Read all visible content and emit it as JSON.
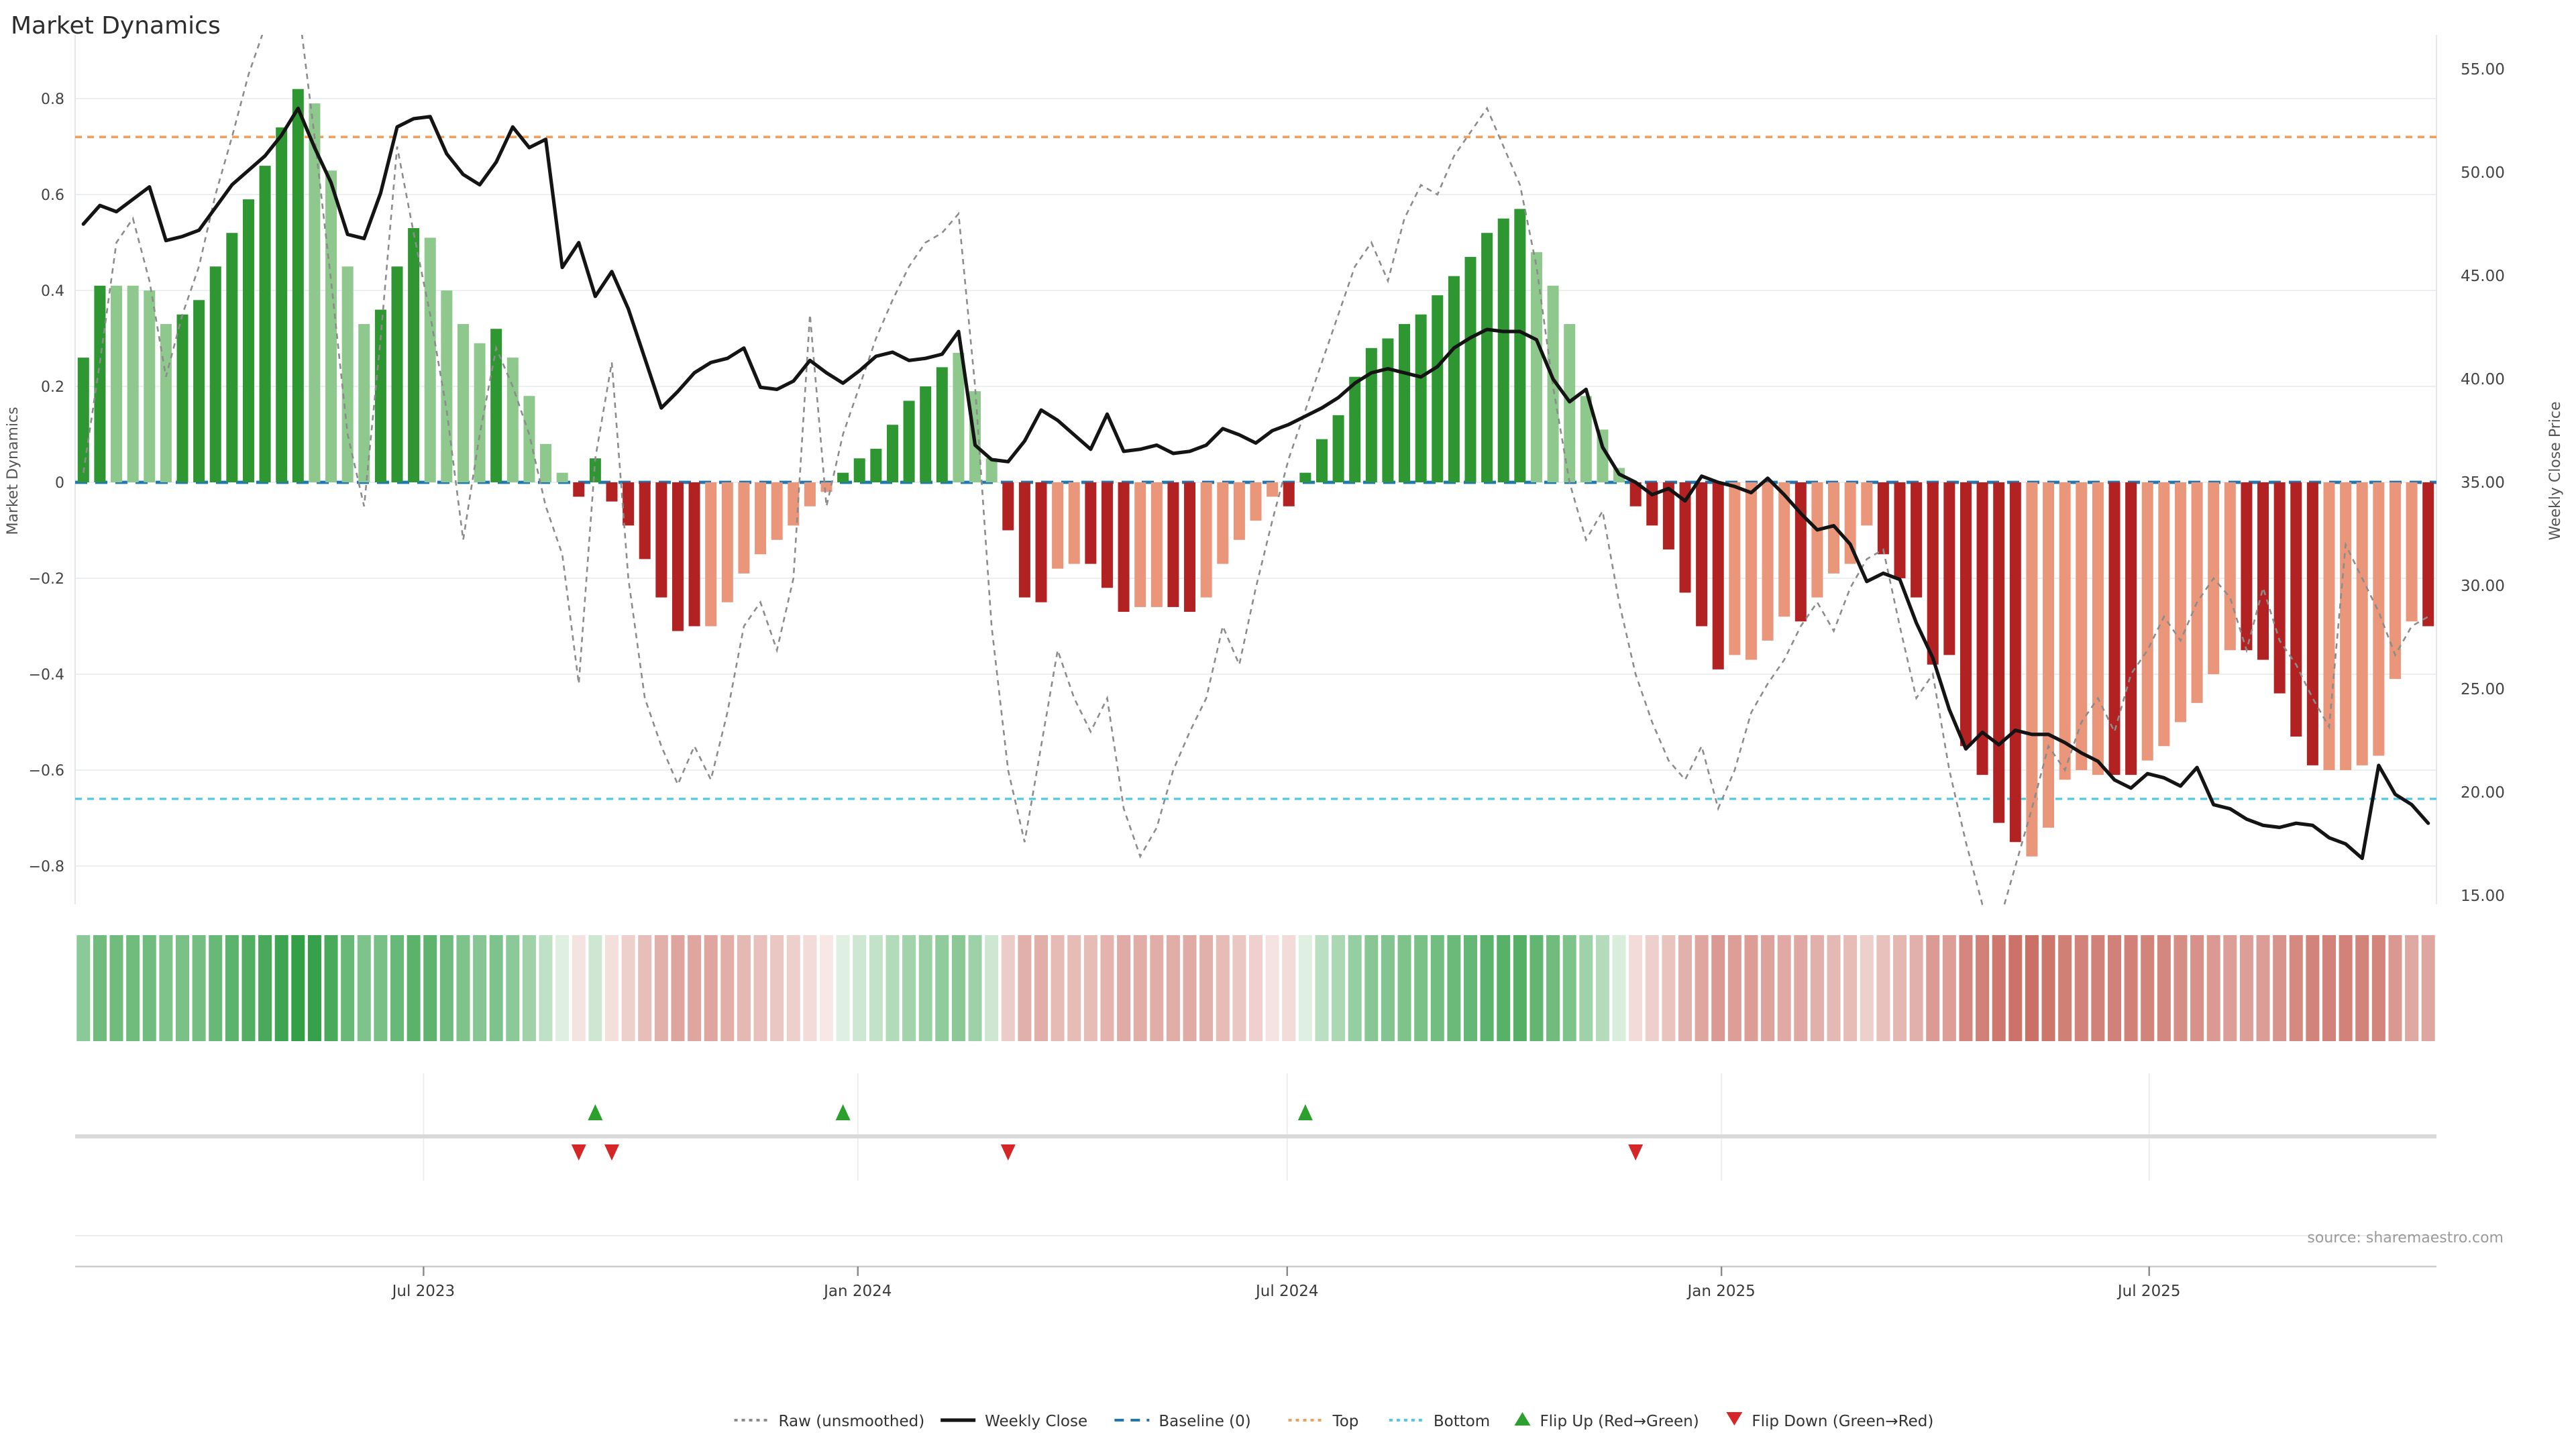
{
  "title": "Market Dynamics",
  "source_note": "source: sharemaestro.com",
  "axes": {
    "left": {
      "label": "Market Dynamics",
      "tick_values": [
        0.8,
        0.6,
        0.4,
        0.2,
        0,
        -0.2,
        -0.4,
        -0.6,
        -0.8
      ],
      "tick_labels": [
        "0.8",
        "0.6",
        "0.4",
        "0.2",
        "0",
        "−0.2",
        "−0.4",
        "−0.6",
        "−0.8"
      ],
      "range": [
        -0.875,
        0.875
      ]
    },
    "right": {
      "label": "Weekly Close Price",
      "tick_values": [
        55,
        50,
        45,
        40,
        35,
        30,
        25,
        20,
        15
      ],
      "tick_labels": [
        "55.00",
        "50.00",
        "45.00",
        "40.00",
        "35.00",
        "30.00",
        "25.00",
        "20.00",
        "15.00"
      ],
      "range": [
        13.2,
        56.8
      ]
    },
    "x": {
      "tick_labels": [
        "Jul 2023",
        "Jan 2024",
        "Jul 2024",
        "Jan 2025",
        "Jul 2025"
      ],
      "tick_weeks": [
        21.1,
        47.4,
        73.4,
        99.7,
        125.6
      ]
    }
  },
  "reference_lines": {
    "baseline": {
      "label": "Baseline (0)",
      "value": 0,
      "color": "#1f77b4",
      "style": "dashed"
    },
    "top": {
      "label": "Top",
      "value": 0.72,
      "color": "#f0a05c",
      "style": "dotted"
    },
    "bottom": {
      "label": "Bottom",
      "value": -0.66,
      "color": "#4fc8e8",
      "style": "dotted"
    }
  },
  "colors": {
    "bar_dark_green": "#2e9732",
    "bar_light_green": "#8ec88c",
    "bar_dark_red": "#b22222",
    "bar_light_red": "#e9967a",
    "weekly_close": "#141414",
    "raw_line": "#8c8c8c",
    "flip_up": "#2ca02c",
    "flip_down": "#d62728",
    "heat_green_base": "#2f9e44",
    "heat_red_base": "#c96a5f",
    "grid": "#eceff2",
    "axis_line": "#cccccc",
    "panel_divider": "#d9d9d9",
    "text_dark": "#333333",
    "text_gray": "#9a9a9a"
  },
  "legend": [
    {
      "label": "Raw (unsmoothed)",
      "swatch": "dotted-line",
      "color": "#8c8c8c"
    },
    {
      "label": "Weekly Close",
      "swatch": "solid-line",
      "color": "#141414"
    },
    {
      "label": "Baseline (0)",
      "swatch": "dashed-line",
      "color": "#1f77b4"
    },
    {
      "label": "Top",
      "swatch": "dotted-line",
      "color": "#f0a05c"
    },
    {
      "label": "Bottom",
      "swatch": "dotted-line",
      "color": "#4fc8e8"
    },
    {
      "label": "Flip Up (Red→Green)",
      "swatch": "triangle-up",
      "color": "#2ca02c"
    },
    {
      "label": "Flip Down (Green→Red)",
      "swatch": "triangle-down",
      "color": "#d62728"
    }
  ],
  "chart_data": {
    "type": "bar",
    "title": "Market Dynamics",
    "x_unit": "weeks (index 0..142)",
    "ylabel_left": "Market Dynamics",
    "ylabel_right": "Weekly Close Price",
    "ylim_left": [
      -0.875,
      0.875
    ],
    "ylim_right": [
      13.2,
      56.8
    ],
    "grid": true,
    "legend_position": "bottom-center",
    "dynamics": [
      0.26,
      0.41,
      0.41,
      0.41,
      0.4,
      0.33,
      0.35,
      0.38,
      0.45,
      0.52,
      0.59,
      0.66,
      0.74,
      0.82,
      0.79,
      0.65,
      0.45,
      0.33,
      0.36,
      0.45,
      0.53,
      0.51,
      0.4,
      0.33,
      0.29,
      0.32,
      0.26,
      0.18,
      0.08,
      0.02,
      -0.03,
      0.05,
      -0.04,
      -0.09,
      -0.16,
      -0.24,
      -0.31,
      -0.3,
      -0.3,
      -0.25,
      -0.19,
      -0.15,
      -0.12,
      -0.09,
      -0.05,
      -0.02,
      0.02,
      0.05,
      0.07,
      0.12,
      0.17,
      0.2,
      0.24,
      0.27,
      0.19,
      0.05,
      -0.1,
      -0.24,
      -0.25,
      -0.18,
      -0.17,
      -0.17,
      -0.22,
      -0.27,
      -0.26,
      -0.26,
      -0.26,
      -0.27,
      -0.24,
      -0.17,
      -0.12,
      -0.08,
      -0.03,
      -0.05,
      0.02,
      0.09,
      0.14,
      0.22,
      0.28,
      0.3,
      0.33,
      0.35,
      0.39,
      0.43,
      0.47,
      0.52,
      0.55,
      0.57,
      0.48,
      0.41,
      0.33,
      0.18,
      0.11,
      0.03,
      -0.05,
      -0.09,
      -0.14,
      -0.23,
      -0.3,
      -0.39,
      -0.36,
      -0.37,
      -0.33,
      -0.28,
      -0.29,
      -0.24,
      -0.19,
      -0.17,
      -0.09,
      -0.15,
      -0.2,
      -0.24,
      -0.38,
      -0.36,
      -0.55,
      -0.61,
      -0.71,
      -0.75,
      -0.78,
      -0.72,
      -0.62,
      -0.6,
      -0.61,
      -0.61,
      -0.61,
      -0.58,
      -0.55,
      -0.5,
      -0.46,
      -0.4,
      -0.35,
      -0.35,
      -0.37,
      -0.44,
      -0.53,
      -0.59,
      -0.6,
      -0.6,
      -0.59,
      -0.57,
      -0.41,
      -0.29,
      -0.3
    ],
    "shades": "ggGGGGggggggggGGGGgggGGGGgGGGGrgrrrrrrRRRRRRRRgggggggGGGrrrRRrrrRRrrRRRRRrggggggggggggggGGGGGGrrrrrrRRRRrRRRRrrrrrrrrrRRRRRrrRRRRRRrrrrrRRRRRRr",
    "shade_codes": {
      "g": "dark_green_rising",
      "G": "light_green_fading",
      "r": "dark_red_falling",
      "R": "light_red_fading"
    },
    "raw": [
      0.02,
      0.25,
      0.5,
      0.55,
      0.42,
      0.22,
      0.35,
      0.45,
      0.6,
      0.72,
      0.85,
      0.95,
      1.02,
      1.0,
      0.72,
      0.42,
      0.1,
      -0.05,
      0.3,
      0.7,
      0.52,
      0.35,
      0.15,
      -0.12,
      0.1,
      0.28,
      0.2,
      0.1,
      -0.05,
      -0.15,
      -0.42,
      0.05,
      0.25,
      -0.2,
      -0.45,
      -0.55,
      -0.63,
      -0.55,
      -0.62,
      -0.48,
      -0.3,
      -0.25,
      -0.35,
      -0.2,
      0.35,
      -0.05,
      0.1,
      0.2,
      0.3,
      0.38,
      0.45,
      0.5,
      0.52,
      0.56,
      0.2,
      -0.3,
      -0.6,
      -0.75,
      -0.55,
      -0.35,
      -0.45,
      -0.52,
      -0.45,
      -0.68,
      -0.78,
      -0.72,
      -0.6,
      -0.52,
      -0.45,
      -0.3,
      -0.38,
      -0.22,
      -0.08,
      0.05,
      0.15,
      0.25,
      0.35,
      0.45,
      0.5,
      0.42,
      0.55,
      0.62,
      0.6,
      0.68,
      0.73,
      0.78,
      0.7,
      0.62,
      0.45,
      0.2,
      0.0,
      -0.12,
      -0.06,
      -0.25,
      -0.4,
      -0.5,
      -0.58,
      -0.62,
      -0.55,
      -0.68,
      -0.6,
      -0.48,
      -0.42,
      -0.37,
      -0.3,
      -0.25,
      -0.31,
      -0.22,
      -0.16,
      -0.14,
      -0.3,
      -0.45,
      -0.4,
      -0.6,
      -0.75,
      -0.88,
      -0.92,
      -0.8,
      -0.68,
      -0.55,
      -0.6,
      -0.5,
      -0.45,
      -0.52,
      -0.4,
      -0.35,
      -0.28,
      -0.33,
      -0.25,
      -0.2,
      -0.24,
      -0.35,
      -0.22,
      -0.33,
      -0.38,
      -0.45,
      -0.51,
      -0.13,
      -0.2,
      -0.27,
      -0.36,
      -0.3,
      -0.28
    ],
    "weekly_close": [
      47.5,
      48.4,
      48.1,
      48.7,
      49.3,
      46.7,
      46.9,
      47.2,
      48.3,
      49.4,
      50.1,
      50.8,
      51.8,
      53.1,
      51.2,
      49.5,
      47.0,
      46.8,
      49.0,
      52.2,
      52.6,
      52.7,
      50.9,
      49.9,
      49.4,
      50.5,
      52.2,
      51.2,
      51.6,
      45.4,
      46.6,
      44.0,
      45.2,
      43.4,
      41.0,
      38.6,
      39.4,
      40.3,
      40.8,
      41.0,
      41.5,
      39.6,
      39.5,
      39.9,
      40.9,
      40.3,
      39.8,
      40.4,
      41.1,
      41.3,
      40.9,
      41.0,
      41.2,
      42.3,
      36.8,
      36.1,
      36.0,
      37.0,
      38.5,
      38.0,
      37.3,
      36.6,
      38.3,
      36.5,
      36.6,
      36.8,
      36.4,
      36.5,
      36.8,
      37.6,
      37.3,
      36.9,
      37.5,
      37.8,
      38.2,
      38.6,
      39.1,
      39.8,
      40.3,
      40.5,
      40.3,
      40.1,
      40.6,
      41.5,
      42.0,
      42.4,
      42.3,
      42.3,
      41.9,
      40.0,
      38.9,
      39.5,
      36.7,
      35.4,
      35.0,
      34.4,
      34.7,
      34.1,
      35.3,
      35.0,
      34.8,
      34.5,
      35.2,
      34.4,
      33.5,
      32.7,
      32.9,
      32.0,
      30.2,
      30.6,
      30.3,
      28.2,
      26.5,
      24.0,
      22.1,
      22.9,
      22.3,
      23.0,
      22.8,
      22.8,
      22.4,
      21.9,
      21.5,
      20.6,
      20.2,
      20.9,
      20.7,
      20.3,
      21.2,
      19.4,
      19.2,
      18.7,
      18.4,
      18.3,
      18.5,
      18.4,
      17.8,
      17.5,
      16.8,
      21.3,
      19.9,
      19.4,
      18.5
    ],
    "flip_up_weeks": [
      31,
      46,
      74
    ],
    "flip_down_weeks": [
      30,
      32,
      56,
      94
    ],
    "series": [
      {
        "name": "Market Dynamics bars",
        "axis": "left",
        "type": "bar"
      },
      {
        "name": "Raw (unsmoothed)",
        "axis": "left",
        "type": "line"
      },
      {
        "name": "Weekly Close",
        "axis": "right",
        "type": "line"
      },
      {
        "name": "Heatmap strip",
        "axis": "none",
        "type": "heatmap"
      }
    ]
  }
}
